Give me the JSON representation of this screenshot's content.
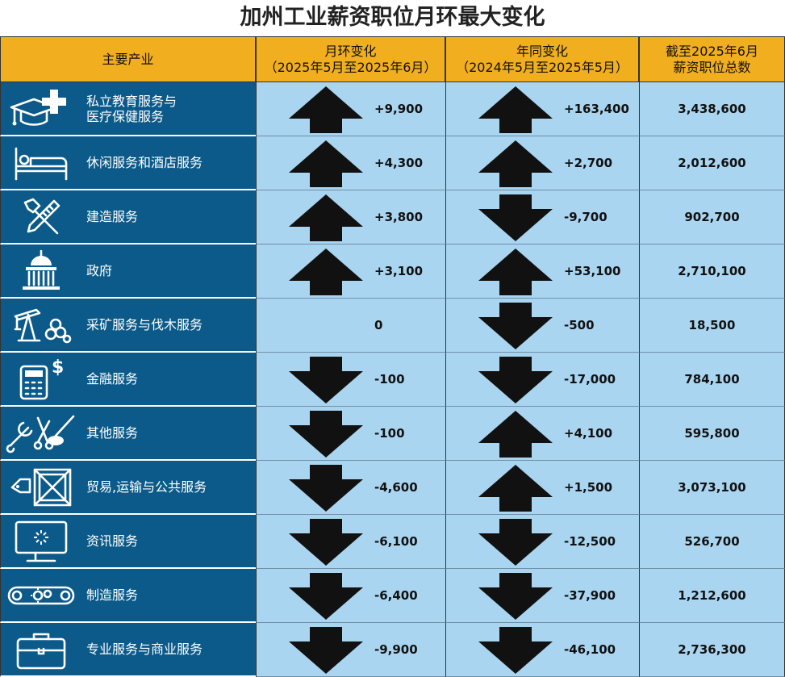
{
  "title": "加州工业薪资职位月环最大变化",
  "headers": {
    "industry": "主要产业",
    "mom_line1": "月环变化",
    "mom_line2": "（2025年5月至2025年6月）",
    "yoy_line1": "年同变化",
    "yoy_line2": "（2024年5月至2025年5月）",
    "total_line1": "截至2025年6月",
    "total_line2": "薪资职位总数"
  },
  "chart_data": {
    "type": "table",
    "columns": [
      "主要产业",
      "月环变化（2025年5月至2025年6月）",
      "年同变化（2024年5月至2025年5月）",
      "截至2025年6月 薪资职位总数"
    ],
    "rows": [
      {
        "industry": "私立教育服务与\n医疗保健服务",
        "icon": "graduation-medical-icon",
        "mom": 9900,
        "mom_label": "+9,900",
        "yoy": 163400,
        "yoy_label": "+163,400",
        "total_label": "3,438,600"
      },
      {
        "industry": "休闲服务和酒店服务",
        "icon": "bed-icon",
        "mom": 4300,
        "mom_label": "+4,300",
        "yoy": 2700,
        "yoy_label": "+2,700",
        "total_label": "2,012,600"
      },
      {
        "industry": "建造服务",
        "icon": "tools-icon",
        "mom": 3800,
        "mom_label": "+3,800",
        "yoy": -9700,
        "yoy_label": "-9,700",
        "total_label": "902,700"
      },
      {
        "industry": "政府",
        "icon": "capitol-icon",
        "mom": 3100,
        "mom_label": "+3,100",
        "yoy": 53100,
        "yoy_label": "+53,100",
        "total_label": "2,710,100"
      },
      {
        "industry": "采矿服务与伐木服务",
        "icon": "oil-pump-logs-icon",
        "mom": 0,
        "mom_label": "0",
        "yoy": -500,
        "yoy_label": "-500",
        "total_label": "18,500"
      },
      {
        "industry": "金融服务",
        "icon": "calculator-dollar-icon",
        "mom": -100,
        "mom_label": "-100",
        "yoy": -17000,
        "yoy_label": "-17,000",
        "total_label": "784,100"
      },
      {
        "industry": "其他服务",
        "icon": "wrench-scissors-icon",
        "mom": -100,
        "mom_label": "-100",
        "yoy": 4100,
        "yoy_label": "+4,100",
        "total_label": "595,800"
      },
      {
        "industry": "贸易,运输与公共服务",
        "icon": "crate-tag-icon",
        "mom": -4600,
        "mom_label": "-4,600",
        "yoy": 1500,
        "yoy_label": "+1,500",
        "total_label": "3,073,100"
      },
      {
        "industry": "资讯服务",
        "icon": "monitor-icon",
        "mom": -6100,
        "mom_label": "-6,100",
        "yoy": -12500,
        "yoy_label": "-12,500",
        "total_label": "526,700"
      },
      {
        "industry": "制造服务",
        "icon": "conveyor-icon",
        "mom": -6400,
        "mom_label": "-6,400",
        "yoy": -37900,
        "yoy_label": "-37,900",
        "total_label": "1,212,600"
      },
      {
        "industry": "专业服务与商业服务",
        "icon": "briefcase-icon",
        "mom": -9900,
        "mom_label": "-9,900",
        "yoy": -46100,
        "yoy_label": "-46,100",
        "total_label": "2,736,300"
      }
    ]
  },
  "colors": {
    "header_bg": "#f1ae1e",
    "industry_bg": "#0b5a8a",
    "cell_bg": "#aad5f0",
    "arrow": "#111111"
  }
}
